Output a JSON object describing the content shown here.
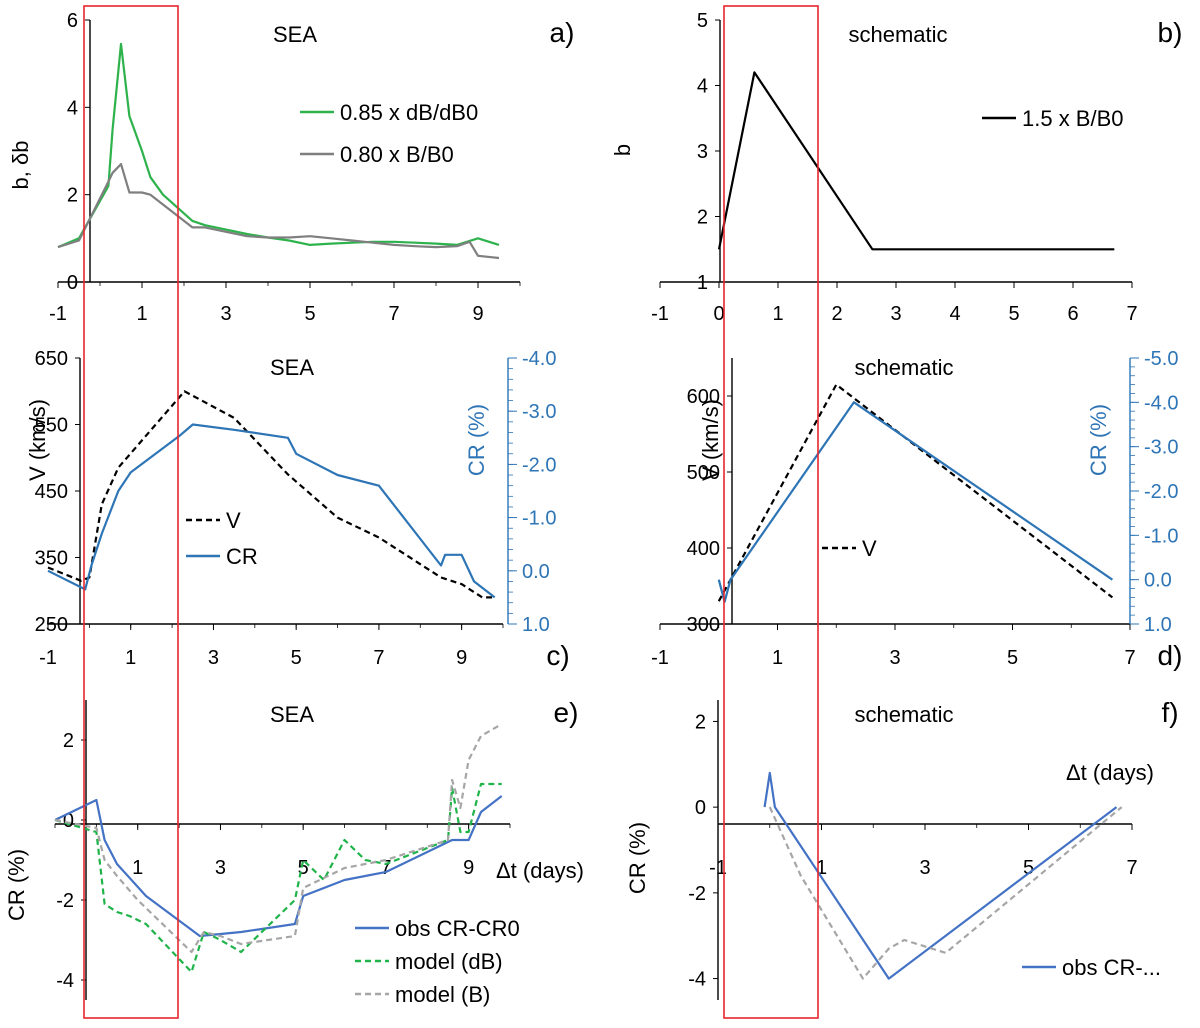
{
  "colors": {
    "green": "#2db24c",
    "gray": "#7f7f7f",
    "black": "#000000",
    "blue": "#2e75b6",
    "blue2": "#4472c4",
    "lgreen": "#1fb34a",
    "lgray": "#a6a6a6",
    "red": "#e8262b"
  },
  "chart_data": [
    {
      "id": "a",
      "type": "line",
      "title": "SEA",
      "panel_label": "a)",
      "ylabel": "b, δb",
      "xlabel": "",
      "xlim": [
        -1,
        10
      ],
      "ylim": [
        0,
        6
      ],
      "xticks": [
        -1,
        1,
        3,
        5,
        7,
        9
      ],
      "yticks": [
        0,
        2,
        4,
        6
      ],
      "legend": "top-right",
      "series": [
        {
          "name": "0.85 x dB/dB0",
          "color": "green",
          "x": [
            -1,
            -0.5,
            0.2,
            0.3,
            0.5,
            0.7,
            1.0,
            1.2,
            1.5,
            2.2,
            2.5,
            3.0,
            3.5,
            4.0,
            4.5,
            5.0,
            5.5,
            6.0,
            6.5,
            7.0,
            7.5,
            8.0,
            8.5,
            9.0,
            9.5
          ],
          "y": [
            0.8,
            1.0,
            2.2,
            3.5,
            5.45,
            3.8,
            3.0,
            2.4,
            2.0,
            1.4,
            1.3,
            1.2,
            1.1,
            1.02,
            0.95,
            0.85,
            0.88,
            0.9,
            0.92,
            0.92,
            0.9,
            0.88,
            0.85,
            1.0,
            0.85
          ]
        },
        {
          "name": "0.80 x B/B0",
          "color": "gray",
          "x": [
            -1,
            -0.5,
            0.2,
            0.3,
            0.5,
            0.7,
            1.0,
            1.2,
            2.2,
            2.5,
            3.0,
            3.5,
            4.0,
            4.5,
            5.0,
            5.5,
            6.0,
            6.5,
            7.0,
            7.5,
            8.0,
            8.5,
            8.8,
            9.0,
            9.5
          ],
          "y": [
            0.8,
            0.95,
            2.3,
            2.5,
            2.7,
            2.05,
            2.05,
            2.0,
            1.25,
            1.25,
            1.15,
            1.05,
            1.02,
            1.02,
            1.05,
            1.0,
            0.95,
            0.9,
            0.85,
            0.82,
            0.8,
            0.82,
            0.92,
            0.6,
            0.55
          ]
        }
      ]
    },
    {
      "id": "b",
      "type": "line",
      "title": "schematic",
      "panel_label": "b)",
      "ylabel": "b",
      "xlabel": "",
      "xlim": [
        -1,
        7
      ],
      "ylim": [
        1,
        5
      ],
      "xticks": [
        -1,
        0,
        1,
        2,
        3,
        4,
        5,
        6,
        7
      ],
      "yticks": [
        1,
        2,
        3,
        4,
        5
      ],
      "legend": "top-right",
      "series": [
        {
          "name": "1.5 x B/B0",
          "color": "black",
          "x": [
            0,
            0.6,
            2.6,
            6.7
          ],
          "y": [
            1.5,
            4.2,
            1.5,
            1.5
          ]
        }
      ]
    },
    {
      "id": "c",
      "type": "line",
      "title": "SEA",
      "panel_label": "c)",
      "ylabel": "V (km/s)",
      "y2label": "CR (%)",
      "xlabel": "",
      "xlim": [
        -1,
        10
      ],
      "ylim": [
        250,
        650
      ],
      "y2lim": [
        1.0,
        -4.0
      ],
      "xticks": [
        -1,
        1,
        3,
        5,
        7,
        9
      ],
      "yticks": [
        250,
        350,
        450,
        550,
        650
      ],
      "y2ticks": [
        "-4.0",
        "-3.0",
        "-2.0",
        "-1.0",
        "0.0",
        "1.0"
      ],
      "legend": "center-left",
      "series": [
        {
          "name": "V",
          "color": "black",
          "dashed": true,
          "axis": "left",
          "x": [
            -1,
            -0.2,
            0.0,
            0.3,
            0.7,
            2.3,
            3.5,
            4.8,
            6.0,
            7.0,
            8.5,
            9.0,
            9.5,
            9.8
          ],
          "y": [
            335,
            315,
            320,
            430,
            485,
            600,
            560,
            475,
            410,
            380,
            320,
            310,
            290,
            290
          ]
        },
        {
          "name": "CR",
          "color": "blue",
          "axis": "right",
          "x": [
            -1,
            -0.1,
            0.05,
            0.3,
            0.7,
            1.0,
            2.2,
            2.5,
            3.5,
            4.8,
            5.0,
            6.0,
            7.0,
            8.5,
            8.6,
            9.0,
            9.3,
            9.8
          ],
          "y": [
            0.0,
            0.35,
            -0.1,
            -0.7,
            -1.5,
            -1.85,
            -2.55,
            -2.75,
            -2.65,
            -2.5,
            -2.2,
            -1.8,
            -1.6,
            -0.1,
            -0.3,
            -0.3,
            0.2,
            0.5
          ]
        }
      ]
    },
    {
      "id": "d",
      "type": "line",
      "title": "schematic",
      "panel_label": "d)",
      "ylabel": "V (km/s)",
      "y2label": "CR (%)",
      "xlabel": "",
      "xlim": [
        -1,
        7
      ],
      "ylim": [
        300,
        650
      ],
      "y2lim": [
        1.0,
        -5.0
      ],
      "xticks": [
        -1,
        1,
        3,
        5,
        7
      ],
      "yticks": [
        300,
        400,
        500,
        600
      ],
      "y2ticks": [
        "-5.0",
        "-4.0",
        "-3.0",
        "-2.0",
        "-1.0",
        "0.0",
        "1.0"
      ],
      "legend": "center-left",
      "series": [
        {
          "name": "V",
          "color": "black",
          "dashed": true,
          "axis": "left",
          "x": [
            0,
            2.0,
            6.7
          ],
          "y": [
            330,
            615,
            335
          ]
        },
        {
          "name": "",
          "color": "blue",
          "axis": "right",
          "x": [
            0,
            0.1,
            0.2,
            2.3,
            6.7
          ],
          "y": [
            0,
            0.5,
            0,
            -4.0,
            0
          ]
        }
      ]
    },
    {
      "id": "e",
      "type": "line",
      "title": "SEA",
      "panel_label": "e)",
      "ylabel": "CR (%)",
      "xlabel": "Δt  (days)",
      "xlim": [
        -1,
        10
      ],
      "ylim": [
        -4.5,
        3.0
      ],
      "xticks": [
        1,
        3,
        5,
        7,
        9
      ],
      "yticks": [
        -4,
        -2,
        0,
        2
      ],
      "legend": "bottom-right",
      "series": [
        {
          "name": "obs  CR-CR0",
          "color": "blue2",
          "x": [
            -1,
            0.0,
            0.2,
            0.5,
            1.2,
            2.5,
            3.0,
            3.5,
            4.8,
            5.0,
            6.0,
            7.0,
            8.6,
            8.8,
            9.0,
            9.3,
            9.8
          ],
          "y": [
            0.0,
            0.5,
            -0.5,
            -1.1,
            -1.9,
            -2.9,
            -2.85,
            -2.8,
            -2.6,
            -1.9,
            -1.5,
            -1.3,
            -0.5,
            -0.5,
            -0.5,
            0.2,
            0.6
          ]
        },
        {
          "name": "model (dB)",
          "color": "lgreen",
          "dashed": true,
          "x": [
            -1,
            0.0,
            0.2,
            0.5,
            0.8,
            1.2,
            2.3,
            2.6,
            3.0,
            3.5,
            4.8,
            5.0,
            5.5,
            6.0,
            6.5,
            7.0,
            8.5,
            8.6,
            8.8,
            9.0,
            9.3,
            9.8
          ],
          "y": [
            0.0,
            -0.3,
            -2.1,
            -2.3,
            -2.4,
            -2.6,
            -3.8,
            -2.8,
            -3.0,
            -3.3,
            -2.0,
            -1.0,
            -1.5,
            -0.5,
            -1.0,
            -1.1,
            -0.5,
            0.8,
            -0.3,
            -0.3,
            0.9,
            0.9
          ]
        },
        {
          "name": "model (B)",
          "color": "lgray",
          "dashed": true,
          "x": [
            -1,
            0.0,
            0.2,
            0.5,
            1.0,
            2.3,
            2.6,
            3.0,
            3.5,
            4.8,
            5.0,
            6.0,
            7.0,
            8.5,
            8.6,
            8.8,
            9.0,
            9.3,
            9.8
          ],
          "y": [
            0.0,
            -0.2,
            -1.0,
            -1.4,
            -2.0,
            -3.3,
            -2.8,
            -2.9,
            -3.1,
            -2.9,
            -1.7,
            -1.2,
            -1.0,
            -0.5,
            1.0,
            0.3,
            1.5,
            2.1,
            2.4
          ]
        }
      ]
    },
    {
      "id": "f",
      "type": "line",
      "title": "schematic",
      "panel_label": "f)",
      "ylabel": "CR (%)",
      "xlabel": "Δt  (days)",
      "xlim": [
        -1,
        7
      ],
      "ylim": [
        -4.5,
        2.5
      ],
      "xticks": [
        -1,
        1,
        3,
        5,
        7
      ],
      "yticks": [
        -4,
        -2,
        0,
        2
      ],
      "legend": "bottom-right",
      "series": [
        {
          "name": "obs  CR-...",
          "color": "blue2",
          "x": [
            -0.1,
            0.0,
            0.1,
            2.3,
            6.7
          ],
          "y": [
            0.0,
            0.8,
            0.0,
            -4.0,
            0.0
          ]
        },
        {
          "name": "",
          "color": "lgray",
          "dashed": true,
          "x": [
            0,
            0.6,
            1.8,
            2.3,
            2.6,
            3.4,
            6.8
          ],
          "y": [
            0,
            -1.6,
            -4.0,
            -3.3,
            -3.1,
            -3.4,
            0.0
          ]
        }
      ]
    }
  ]
}
